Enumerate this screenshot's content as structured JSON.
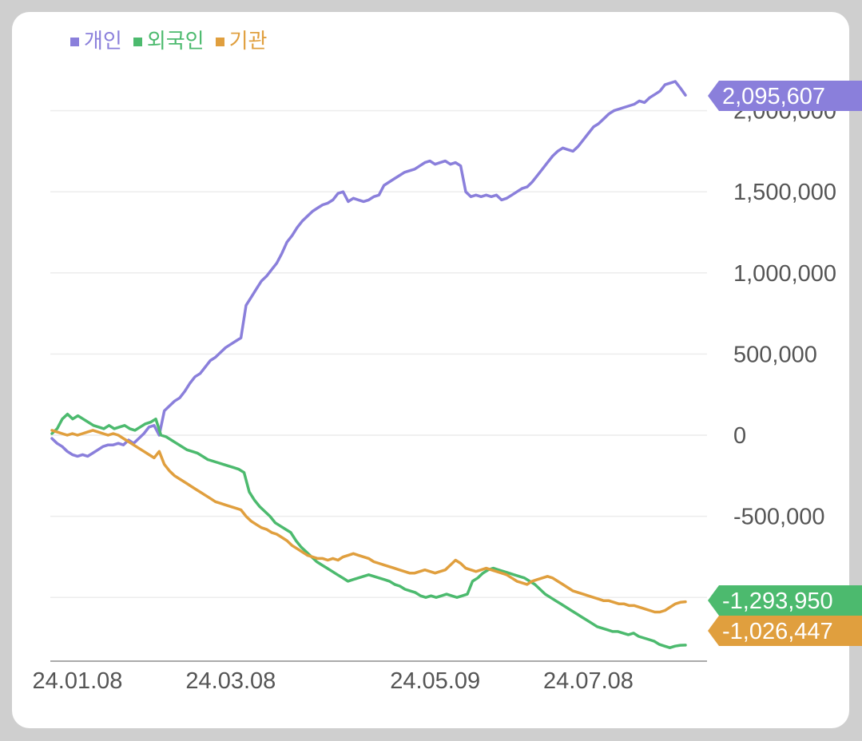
{
  "chart_data": {
    "type": "line",
    "legend_position": "top-left",
    "series": [
      {
        "name": "개인",
        "color": "#8a7fdb",
        "end_label": "2,095,607",
        "values": [
          -20000,
          -50000,
          -70000,
          -100000,
          -120000,
          -130000,
          -120000,
          -130000,
          -110000,
          -90000,
          -70000,
          -60000,
          -60000,
          -50000,
          -60000,
          -30000,
          -50000,
          -20000,
          10000,
          50000,
          60000,
          0,
          150000,
          180000,
          210000,
          230000,
          270000,
          320000,
          360000,
          380000,
          420000,
          460000,
          480000,
          510000,
          540000,
          560000,
          580000,
          600000,
          800000,
          850000,
          900000,
          950000,
          980000,
          1020000,
          1060000,
          1120000,
          1190000,
          1230000,
          1280000,
          1320000,
          1350000,
          1380000,
          1400000,
          1420000,
          1430000,
          1450000,
          1490000,
          1500000,
          1440000,
          1460000,
          1450000,
          1440000,
          1450000,
          1470000,
          1480000,
          1540000,
          1560000,
          1580000,
          1600000,
          1620000,
          1630000,
          1640000,
          1660000,
          1680000,
          1690000,
          1670000,
          1680000,
          1690000,
          1670000,
          1680000,
          1660000,
          1500000,
          1470000,
          1480000,
          1470000,
          1480000,
          1470000,
          1480000,
          1450000,
          1460000,
          1480000,
          1500000,
          1520000,
          1530000,
          1560000,
          1600000,
          1640000,
          1680000,
          1720000,
          1750000,
          1770000,
          1760000,
          1750000,
          1780000,
          1820000,
          1860000,
          1900000,
          1920000,
          1950000,
          1980000,
          2000000,
          2010000,
          2020000,
          2030000,
          2040000,
          2060000,
          2050000,
          2080000,
          2100000,
          2120000,
          2160000,
          2170000,
          2180000,
          2140000,
          2095607
        ]
      },
      {
        "name": "외국인",
        "color": "#4cba6e",
        "end_label": "-1,293,950",
        "values": [
          10000,
          40000,
          100000,
          130000,
          100000,
          120000,
          100000,
          80000,
          60000,
          50000,
          40000,
          60000,
          40000,
          50000,
          60000,
          40000,
          30000,
          50000,
          70000,
          80000,
          100000,
          0,
          -10000,
          -30000,
          -50000,
          -70000,
          -90000,
          -100000,
          -110000,
          -130000,
          -150000,
          -160000,
          -170000,
          -180000,
          -190000,
          -200000,
          -210000,
          -230000,
          -350000,
          -400000,
          -440000,
          -470000,
          -500000,
          -540000,
          -560000,
          -580000,
          -600000,
          -650000,
          -690000,
          -720000,
          -750000,
          -780000,
          -800000,
          -820000,
          -840000,
          -860000,
          -880000,
          -900000,
          -890000,
          -880000,
          -870000,
          -860000,
          -870000,
          -880000,
          -890000,
          -900000,
          -920000,
          -930000,
          -950000,
          -960000,
          -970000,
          -990000,
          -1000000,
          -990000,
          -1000000,
          -990000,
          -980000,
          -990000,
          -1000000,
          -990000,
          -980000,
          -900000,
          -880000,
          -850000,
          -830000,
          -820000,
          -830000,
          -840000,
          -850000,
          -860000,
          -870000,
          -880000,
          -900000,
          -920000,
          -950000,
          -980000,
          -1000000,
          -1020000,
          -1040000,
          -1060000,
          -1080000,
          -1100000,
          -1120000,
          -1140000,
          -1160000,
          -1180000,
          -1190000,
          -1200000,
          -1210000,
          -1210000,
          -1220000,
          -1230000,
          -1220000,
          -1240000,
          -1250000,
          -1260000,
          -1270000,
          -1290000,
          -1300000,
          -1310000,
          -1300000,
          -1295000,
          -1293950
        ]
      },
      {
        "name": "기관",
        "color": "#e09f3e",
        "end_label": "-1,026,447",
        "values": [
          30000,
          20000,
          10000,
          0,
          10000,
          0,
          10000,
          20000,
          30000,
          20000,
          10000,
          0,
          10000,
          0,
          -20000,
          -40000,
          -60000,
          -80000,
          -100000,
          -120000,
          -140000,
          -100000,
          -180000,
          -220000,
          -250000,
          -270000,
          -290000,
          -310000,
          -330000,
          -350000,
          -370000,
          -390000,
          -410000,
          -420000,
          -430000,
          -440000,
          -450000,
          -460000,
          -500000,
          -530000,
          -550000,
          -570000,
          -580000,
          -600000,
          -610000,
          -630000,
          -650000,
          -680000,
          -700000,
          -720000,
          -740000,
          -750000,
          -760000,
          -760000,
          -770000,
          -760000,
          -770000,
          -750000,
          -740000,
          -730000,
          -740000,
          -750000,
          -760000,
          -780000,
          -790000,
          -800000,
          -810000,
          -820000,
          -830000,
          -840000,
          -850000,
          -850000,
          -840000,
          -830000,
          -840000,
          -850000,
          -840000,
          -830000,
          -800000,
          -770000,
          -790000,
          -820000,
          -830000,
          -840000,
          -830000,
          -820000,
          -830000,
          -840000,
          -850000,
          -860000,
          -880000,
          -900000,
          -910000,
          -920000,
          -900000,
          -890000,
          -880000,
          -870000,
          -880000,
          -900000,
          -920000,
          -940000,
          -960000,
          -970000,
          -980000,
          -990000,
          -1000000,
          -1010000,
          -1020000,
          -1020000,
          -1030000,
          -1040000,
          -1040000,
          -1050000,
          -1050000,
          -1060000,
          -1070000,
          -1080000,
          -1090000,
          -1090000,
          -1080000,
          -1060000,
          -1040000,
          -1030000,
          -1026447
        ]
      }
    ],
    "x_tick_labels": [
      "24.01.08",
      "24.03.08",
      "24.05.09",
      "24.07.08"
    ],
    "x_tick_indices": [
      5,
      35,
      75,
      105
    ],
    "y_ticks": [
      2000000,
      1500000,
      1000000,
      500000,
      0,
      -500000,
      -1000000
    ],
    "y_tick_labels": [
      "2,000,000",
      "1,500,000",
      "1,000,000",
      "500,000",
      "0",
      "-500,000",
      ""
    ],
    "ylim": [
      -1400000,
      2300000
    ],
    "grid": true,
    "title": "",
    "xlabel": "",
    "ylabel": ""
  }
}
